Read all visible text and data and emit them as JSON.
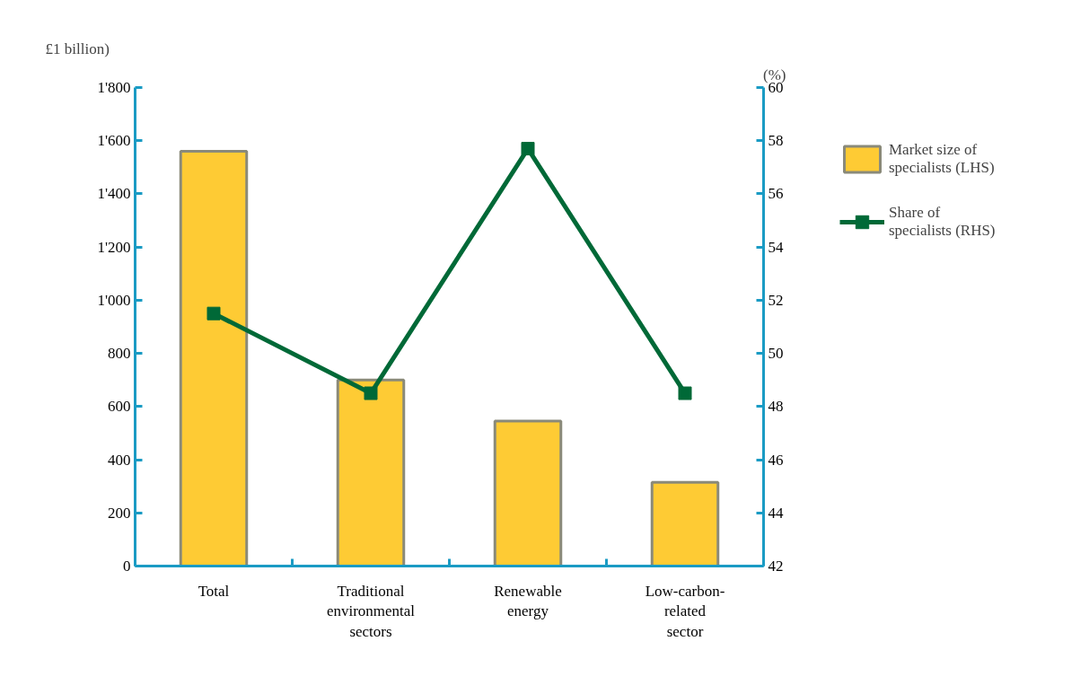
{
  "chart_data": {
    "type": "bar",
    "ylabel": "£1 billion)",
    "y2label": "(%)",
    "categories": [
      "Total",
      "Traditional environmental sectors",
      "Renewable energy",
      "Low-carbon-related sector"
    ],
    "series": [
      {
        "name": "Market size of specialists (LHS)",
        "color": "#fecb34",
        "values": [
          1560,
          700,
          545,
          315
        ]
      },
      {
        "name": "Share of specialists (RHS)",
        "type": "line",
        "axis": "y2",
        "color": "#006937",
        "marker": "square",
        "values": [
          51.5,
          48.5,
          57.7,
          48.5
        ]
      }
    ],
    "ylim": [
      0,
      1800
    ],
    "yticks": [
      0,
      200,
      400,
      600,
      800,
      {
        "value": 1000,
        "label": "1'000"
      },
      {
        "value": 1200,
        "label": "1'200"
      },
      {
        "value": 1400,
        "label": "1'400"
      },
      {
        "value": 1600,
        "label": "1'600"
      },
      {
        "value": 1800,
        "label": "1'800"
      }
    ],
    "y2lim": [
      42,
      60
    ],
    "y2ticks": [
      42,
      44,
      46,
      48,
      50,
      52,
      54,
      56,
      58,
      60
    ],
    "grid": false,
    "legend": "right"
  }
}
